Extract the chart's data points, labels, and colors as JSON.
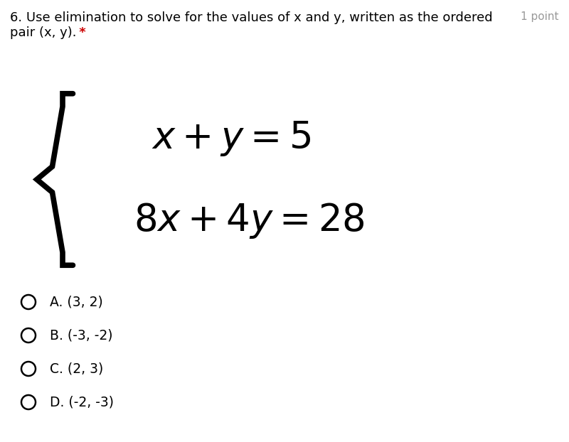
{
  "bg_color": "#ffffff",
  "question_line1": "6. Use elimination to solve for the values of x and y, written as the ordered",
  "question_line2": "pair (x, y).",
  "asterisk": " *",
  "points_text": "1 point",
  "eq1": "$x + y = 5$",
  "eq2": "$8x + 4y = 28$",
  "choices": [
    "A. (3, 2)",
    "B. (-3, -2)",
    "C. (2, 3)",
    "D. (-2, -3)"
  ],
  "title_fontsize": 13.0,
  "points_fontsize": 11.0,
  "eq_fontsize": 38,
  "choice_fontsize": 13.5,
  "text_color": "#000000",
  "gray_color": "#999999",
  "red_color": "#cc0000",
  "brace_color": "#000000"
}
